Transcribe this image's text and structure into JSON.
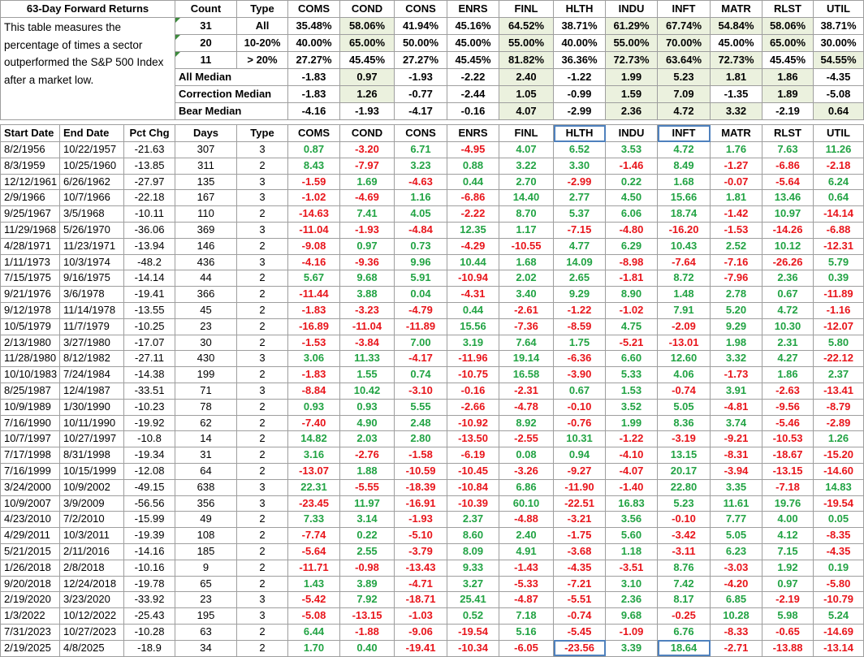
{
  "title": "63-Day Forward Returns",
  "description": "This table measures the percentage of times a sector outperformed the S&P 500 Index after a market low.",
  "summary_headers": [
    "Count",
    "Type",
    "COMS",
    "COND",
    "CONS",
    "ENRS",
    "FINL",
    "HLTH",
    "INDU",
    "INFT",
    "MATR",
    "RLST",
    "UTIL"
  ],
  "summary_rows": [
    {
      "count": "31",
      "type": "All",
      "values": [
        "35.48%",
        "58.06%",
        "41.94%",
        "45.16%",
        "64.52%",
        "38.71%",
        "61.29%",
        "67.74%",
        "54.84%",
        "58.06%",
        "38.71%"
      ],
      "hl": [
        false,
        true,
        false,
        false,
        true,
        false,
        true,
        true,
        true,
        true,
        false
      ]
    },
    {
      "count": "20",
      "type": "10-20%",
      "values": [
        "40.00%",
        "65.00%",
        "50.00%",
        "45.00%",
        "55.00%",
        "40.00%",
        "55.00%",
        "70.00%",
        "45.00%",
        "65.00%",
        "30.00%"
      ],
      "hl": [
        false,
        true,
        false,
        false,
        true,
        false,
        true,
        true,
        false,
        true,
        false
      ]
    },
    {
      "count": "11",
      "type": "> 20%",
      "values": [
        "27.27%",
        "45.45%",
        "27.27%",
        "45.45%",
        "81.82%",
        "36.36%",
        "72.73%",
        "63.64%",
        "72.73%",
        "45.45%",
        "54.55%"
      ],
      "hl": [
        false,
        false,
        false,
        false,
        true,
        false,
        true,
        true,
        true,
        false,
        true
      ]
    }
  ],
  "median_rows": [
    {
      "label": "All Median",
      "values": [
        "-1.83",
        "0.97",
        "-1.93",
        "-2.22",
        "2.40",
        "-1.22",
        "1.99",
        "5.23",
        "1.81",
        "1.86",
        "-4.35"
      ],
      "hl": [
        false,
        true,
        false,
        false,
        true,
        false,
        true,
        true,
        true,
        true,
        false
      ]
    },
    {
      "label": "Correction Median",
      "values": [
        "-1.83",
        "1.26",
        "-0.77",
        "-2.44",
        "1.05",
        "-0.99",
        "1.59",
        "7.09",
        "-1.35",
        "1.89",
        "-5.08"
      ],
      "hl": [
        false,
        true,
        false,
        false,
        true,
        false,
        true,
        true,
        false,
        true,
        false
      ]
    },
    {
      "label": "Bear Median",
      "values": [
        "-4.16",
        "-1.93",
        "-4.17",
        "-0.16",
        "4.07",
        "-2.99",
        "2.36",
        "4.72",
        "3.32",
        "-2.19",
        "0.64"
      ],
      "hl": [
        false,
        false,
        false,
        false,
        true,
        false,
        true,
        true,
        true,
        false,
        true
      ]
    }
  ],
  "detail_headers": [
    "Start Date",
    "End Date",
    "Pct Chg",
    "Days",
    "Type",
    "COMS",
    "COND",
    "CONS",
    "ENRS",
    "FINL",
    "HLTH",
    "INDU",
    "INFT",
    "MATR",
    "RLST",
    "UTIL"
  ],
  "detail_rows": [
    [
      "8/2/1956",
      "10/22/1957",
      "-21.63",
      "307",
      "3",
      "0.87",
      "-3.20",
      "6.71",
      "-4.95",
      "4.07",
      "6.52",
      "3.53",
      "4.72",
      "1.76",
      "7.63",
      "11.26"
    ],
    [
      "8/3/1959",
      "10/25/1960",
      "-13.85",
      "311",
      "2",
      "8.43",
      "-7.97",
      "3.23",
      "0.88",
      "3.22",
      "3.30",
      "-1.46",
      "8.49",
      "-1.27",
      "-6.86",
      "-2.18"
    ],
    [
      "12/12/1961",
      "6/26/1962",
      "-27.97",
      "135",
      "3",
      "-1.59",
      "1.69",
      "-4.63",
      "0.44",
      "2.70",
      "-2.99",
      "0.22",
      "1.68",
      "-0.07",
      "-5.64",
      "6.24"
    ],
    [
      "2/9/1966",
      "10/7/1966",
      "-22.18",
      "167",
      "3",
      "-1.02",
      "-4.69",
      "1.16",
      "-6.86",
      "14.40",
      "2.77",
      "4.50",
      "15.66",
      "1.81",
      "13.46",
      "0.64"
    ],
    [
      "9/25/1967",
      "3/5/1968",
      "-10.11",
      "110",
      "2",
      "-14.63",
      "7.41",
      "4.05",
      "-2.22",
      "8.70",
      "5.37",
      "6.06",
      "18.74",
      "-1.42",
      "10.97",
      "-14.14"
    ],
    [
      "11/29/1968",
      "5/26/1970",
      "-36.06",
      "369",
      "3",
      "-11.04",
      "-1.93",
      "-4.84",
      "12.35",
      "1.17",
      "-7.15",
      "-4.80",
      "-16.20",
      "-1.53",
      "-14.26",
      "-6.88"
    ],
    [
      "4/28/1971",
      "11/23/1971",
      "-13.94",
      "146",
      "2",
      "-9.08",
      "0.97",
      "0.73",
      "-4.29",
      "-10.55",
      "4.77",
      "6.29",
      "10.43",
      "2.52",
      "10.12",
      "-12.31"
    ],
    [
      "1/11/1973",
      "10/3/1974",
      "-48.2",
      "436",
      "3",
      "-4.16",
      "-9.36",
      "9.96",
      "10.44",
      "1.68",
      "14.09",
      "-8.98",
      "-7.64",
      "-7.16",
      "-26.26",
      "5.79"
    ],
    [
      "7/15/1975",
      "9/16/1975",
      "-14.14",
      "44",
      "2",
      "5.67",
      "9.68",
      "5.91",
      "-10.94",
      "2.02",
      "2.65",
      "-1.81",
      "8.72",
      "-7.96",
      "2.36",
      "0.39"
    ],
    [
      "9/21/1976",
      "3/6/1978",
      "-19.41",
      "366",
      "2",
      "-11.44",
      "3.88",
      "0.04",
      "-4.31",
      "3.40",
      "9.29",
      "8.90",
      "1.48",
      "2.78",
      "0.67",
      "-11.89"
    ],
    [
      "9/12/1978",
      "11/14/1978",
      "-13.55",
      "45",
      "2",
      "-1.83",
      "-3.23",
      "-4.79",
      "0.44",
      "-2.61",
      "-1.22",
      "-1.02",
      "7.91",
      "5.20",
      "4.72",
      "-1.16"
    ],
    [
      "10/5/1979",
      "11/7/1979",
      "-10.25",
      "23",
      "2",
      "-16.89",
      "-11.04",
      "-11.89",
      "15.56",
      "-7.36",
      "-8.59",
      "4.75",
      "-2.09",
      "9.29",
      "10.30",
      "-12.07"
    ],
    [
      "2/13/1980",
      "3/27/1980",
      "-17.07",
      "30",
      "2",
      "-1.53",
      "-3.84",
      "7.00",
      "3.19",
      "7.64",
      "1.75",
      "-5.21",
      "-13.01",
      "1.98",
      "2.31",
      "5.80"
    ],
    [
      "11/28/1980",
      "8/12/1982",
      "-27.11",
      "430",
      "3",
      "3.06",
      "11.33",
      "-4.17",
      "-11.96",
      "19.14",
      "-6.36",
      "6.60",
      "12.60",
      "3.32",
      "4.27",
      "-22.12"
    ],
    [
      "10/10/1983",
      "7/24/1984",
      "-14.38",
      "199",
      "2",
      "-1.83",
      "1.55",
      "0.74",
      "-10.75",
      "16.58",
      "-3.90",
      "5.33",
      "4.06",
      "-1.73",
      "1.86",
      "2.37"
    ],
    [
      "8/25/1987",
      "12/4/1987",
      "-33.51",
      "71",
      "3",
      "-8.84",
      "10.42",
      "-3.10",
      "-0.16",
      "-2.31",
      "0.67",
      "1.53",
      "-0.74",
      "3.91",
      "-2.63",
      "-13.41"
    ],
    [
      "10/9/1989",
      "1/30/1990",
      "-10.23",
      "78",
      "2",
      "0.93",
      "0.93",
      "5.55",
      "-2.66",
      "-4.78",
      "-0.10",
      "3.52",
      "5.05",
      "-4.81",
      "-9.56",
      "-8.79"
    ],
    [
      "7/16/1990",
      "10/11/1990",
      "-19.92",
      "62",
      "2",
      "-7.40",
      "4.90",
      "2.48",
      "-10.92",
      "8.92",
      "-0.76",
      "1.99",
      "8.36",
      "3.74",
      "-5.46",
      "-2.89"
    ],
    [
      "10/7/1997",
      "10/27/1997",
      "-10.8",
      "14",
      "2",
      "14.82",
      "2.03",
      "2.80",
      "-13.50",
      "-2.55",
      "10.31",
      "-1.22",
      "-3.19",
      "-9.21",
      "-10.53",
      "1.26"
    ],
    [
      "7/17/1998",
      "8/31/1998",
      "-19.34",
      "31",
      "2",
      "3.16",
      "-2.76",
      "-1.58",
      "-6.19",
      "0.08",
      "0.94",
      "-4.10",
      "13.15",
      "-8.31",
      "-18.67",
      "-15.20"
    ],
    [
      "7/16/1999",
      "10/15/1999",
      "-12.08",
      "64",
      "2",
      "-13.07",
      "1.88",
      "-10.59",
      "-10.45",
      "-3.26",
      "-9.27",
      "-4.07",
      "20.17",
      "-3.94",
      "-13.15",
      "-14.60"
    ],
    [
      "3/24/2000",
      "10/9/2002",
      "-49.15",
      "638",
      "3",
      "22.31",
      "-5.55",
      "-18.39",
      "-10.84",
      "6.86",
      "-11.90",
      "-1.40",
      "22.80",
      "3.35",
      "-7.18",
      "14.83"
    ],
    [
      "10/9/2007",
      "3/9/2009",
      "-56.56",
      "356",
      "3",
      "-23.45",
      "11.97",
      "-16.91",
      "-10.39",
      "60.10",
      "-22.51",
      "16.83",
      "5.23",
      "11.61",
      "19.76",
      "-19.54"
    ],
    [
      "4/23/2010",
      "7/2/2010",
      "-15.99",
      "49",
      "2",
      "7.33",
      "3.14",
      "-1.93",
      "2.37",
      "-4.88",
      "-3.21",
      "3.56",
      "-0.10",
      "7.77",
      "4.00",
      "0.05"
    ],
    [
      "4/29/2011",
      "10/3/2011",
      "-19.39",
      "108",
      "2",
      "-7.74",
      "0.22",
      "-5.10",
      "8.60",
      "2.40",
      "-1.75",
      "5.60",
      "-3.42",
      "5.05",
      "4.12",
      "-8.35"
    ],
    [
      "5/21/2015",
      "2/11/2016",
      "-14.16",
      "185",
      "2",
      "-5.64",
      "2.55",
      "-3.79",
      "8.09",
      "4.91",
      "-3.68",
      "1.18",
      "-3.11",
      "6.23",
      "7.15",
      "-4.35"
    ],
    [
      "1/26/2018",
      "2/8/2018",
      "-10.16",
      "9",
      "2",
      "-11.71",
      "-0.98",
      "-13.43",
      "9.33",
      "-1.43",
      "-4.35",
      "-3.51",
      "8.76",
      "-3.03",
      "1.92",
      "0.19"
    ],
    [
      "9/20/2018",
      "12/24/2018",
      "-19.78",
      "65",
      "2",
      "1.43",
      "3.89",
      "-4.71",
      "3.27",
      "-5.33",
      "-7.21",
      "3.10",
      "7.42",
      "-4.20",
      "0.97",
      "-5.80"
    ],
    [
      "2/19/2020",
      "3/23/2020",
      "-33.92",
      "23",
      "3",
      "-5.42",
      "7.92",
      "-18.71",
      "25.41",
      "-4.87",
      "-5.51",
      "2.36",
      "8.17",
      "6.85",
      "-2.19",
      "-10.79"
    ],
    [
      "1/3/2022",
      "10/12/2022",
      "-25.43",
      "195",
      "3",
      "-5.08",
      "-13.15",
      "-1.03",
      "0.52",
      "7.18",
      "-0.74",
      "9.68",
      "-0.25",
      "10.28",
      "5.98",
      "5.24"
    ],
    [
      "7/31/2023",
      "10/27/2023",
      "-10.28",
      "63",
      "2",
      "6.44",
      "-1.88",
      "-9.06",
      "-19.54",
      "5.16",
      "-5.45",
      "-1.09",
      "6.76",
      "-8.33",
      "-0.65",
      "-14.69"
    ],
    [
      "2/19/2025",
      "4/8/2025",
      "-18.9",
      "34",
      "2",
      "1.70",
      "0.40",
      "-19.41",
      "-10.34",
      "-6.05",
      "-23.56",
      "3.39",
      "18.64",
      "-2.71",
      "-13.88",
      "-13.14"
    ]
  ],
  "colors": {
    "positive": "#22a344",
    "negative": "#e8151b",
    "highlight": "#ebf1de",
    "box_outline": "#4f81bd",
    "corner_marker": "#3d8b3d"
  },
  "boxed_cells": [
    "HLTH header",
    "INFT header",
    "2/19/2025 HLTH",
    "2/19/2025 INFT"
  ]
}
